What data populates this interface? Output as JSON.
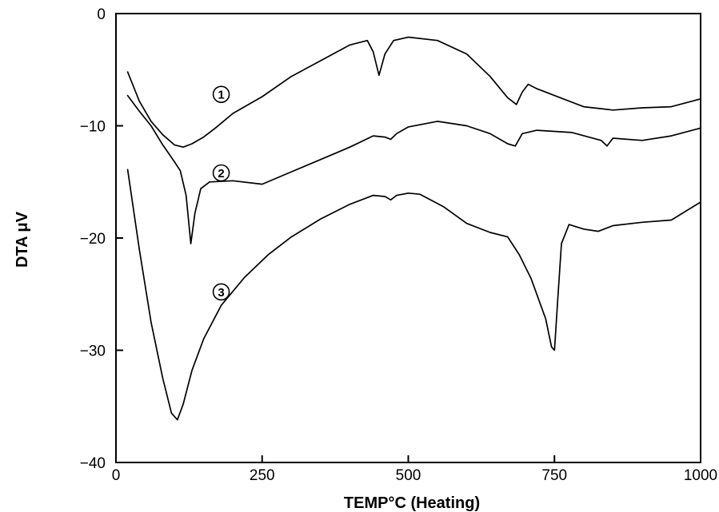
{
  "chart_data": {
    "type": "line",
    "title": "",
    "xlabel": "TEMP°C (Heating)",
    "ylabel": "DTA μV",
    "xlim": [
      0,
      1000
    ],
    "ylim": [
      -40,
      0
    ],
    "x_ticks": [
      "0",
      "250",
      "500",
      "750",
      "1000"
    ],
    "y_ticks": [
      "0",
      "−10",
      "−20",
      "−30",
      "−40"
    ],
    "x_tick_values": [
      0,
      250,
      500,
      750,
      1000
    ],
    "y_tick_values": [
      0,
      -10,
      -20,
      -30,
      -40
    ],
    "grid": false,
    "series": [
      {
        "name": "①",
        "label_at": [
          180,
          -7.2
        ],
        "points": [
          [
            20,
            -5.2
          ],
          [
            40,
            -7.8
          ],
          [
            60,
            -9.6
          ],
          [
            80,
            -10.8
          ],
          [
            100,
            -11.7
          ],
          [
            115,
            -11.9
          ],
          [
            130,
            -11.6
          ],
          [
            150,
            -11.0
          ],
          [
            170,
            -10.2
          ],
          [
            200,
            -8.9
          ],
          [
            250,
            -7.4
          ],
          [
            300,
            -5.6
          ],
          [
            350,
            -4.2
          ],
          [
            400,
            -2.8
          ],
          [
            430,
            -2.4
          ],
          [
            440,
            -3.4
          ],
          [
            450,
            -5.5
          ],
          [
            460,
            -3.6
          ],
          [
            475,
            -2.4
          ],
          [
            500,
            -2.1
          ],
          [
            550,
            -2.4
          ],
          [
            600,
            -3.6
          ],
          [
            640,
            -5.6
          ],
          [
            670,
            -7.5
          ],
          [
            685,
            -8.1
          ],
          [
            695,
            -7.0
          ],
          [
            705,
            -6.3
          ],
          [
            720,
            -6.7
          ],
          [
            750,
            -7.3
          ],
          [
            800,
            -8.3
          ],
          [
            850,
            -8.6
          ],
          [
            900,
            -8.4
          ],
          [
            950,
            -8.3
          ],
          [
            1000,
            -7.6
          ]
        ]
      },
      {
        "name": "②",
        "label_at": [
          180,
          -14.2
        ],
        "points": [
          [
            20,
            -7.3
          ],
          [
            40,
            -8.7
          ],
          [
            60,
            -10.0
          ],
          [
            80,
            -11.7
          ],
          [
            100,
            -13.2
          ],
          [
            110,
            -14.0
          ],
          [
            120,
            -16.2
          ],
          [
            128,
            -20.5
          ],
          [
            135,
            -17.8
          ],
          [
            145,
            -15.6
          ],
          [
            160,
            -15.0
          ],
          [
            200,
            -14.9
          ],
          [
            250,
            -15.2
          ],
          [
            300,
            -14.1
          ],
          [
            350,
            -13.0
          ],
          [
            400,
            -11.9
          ],
          [
            440,
            -10.9
          ],
          [
            460,
            -11.0
          ],
          [
            470,
            -11.2
          ],
          [
            480,
            -10.7
          ],
          [
            500,
            -10.1
          ],
          [
            550,
            -9.6
          ],
          [
            600,
            -10.0
          ],
          [
            640,
            -10.7
          ],
          [
            670,
            -11.6
          ],
          [
            683,
            -11.8
          ],
          [
            695,
            -10.7
          ],
          [
            720,
            -10.4
          ],
          [
            780,
            -10.6
          ],
          [
            830,
            -11.3
          ],
          [
            840,
            -11.8
          ],
          [
            850,
            -11.1
          ],
          [
            900,
            -11.3
          ],
          [
            950,
            -10.9
          ],
          [
            1000,
            -10.2
          ]
        ]
      },
      {
        "name": "③",
        "label_at": [
          180,
          -24.8
        ],
        "points": [
          [
            20,
            -13.9
          ],
          [
            40,
            -21.0
          ],
          [
            60,
            -27.5
          ],
          [
            80,
            -32.5
          ],
          [
            95,
            -35.6
          ],
          [
            105,
            -36.2
          ],
          [
            115,
            -34.8
          ],
          [
            130,
            -31.8
          ],
          [
            150,
            -29.0
          ],
          [
            180,
            -26.0
          ],
          [
            220,
            -23.5
          ],
          [
            260,
            -21.5
          ],
          [
            300,
            -19.9
          ],
          [
            350,
            -18.3
          ],
          [
            400,
            -17.0
          ],
          [
            440,
            -16.2
          ],
          [
            460,
            -16.3
          ],
          [
            470,
            -16.6
          ],
          [
            480,
            -16.2
          ],
          [
            500,
            -16.0
          ],
          [
            520,
            -16.1
          ],
          [
            560,
            -17.2
          ],
          [
            600,
            -18.7
          ],
          [
            640,
            -19.5
          ],
          [
            670,
            -19.9
          ],
          [
            690,
            -21.5
          ],
          [
            710,
            -23.6
          ],
          [
            735,
            -27.2
          ],
          [
            745,
            -29.7
          ],
          [
            750,
            -30.0
          ],
          [
            755,
            -26.0
          ],
          [
            762,
            -20.5
          ],
          [
            775,
            -18.8
          ],
          [
            800,
            -19.2
          ],
          [
            825,
            -19.4
          ],
          [
            850,
            -18.9
          ],
          [
            900,
            -18.6
          ],
          [
            950,
            -18.4
          ],
          [
            1000,
            -16.8
          ]
        ]
      }
    ]
  }
}
